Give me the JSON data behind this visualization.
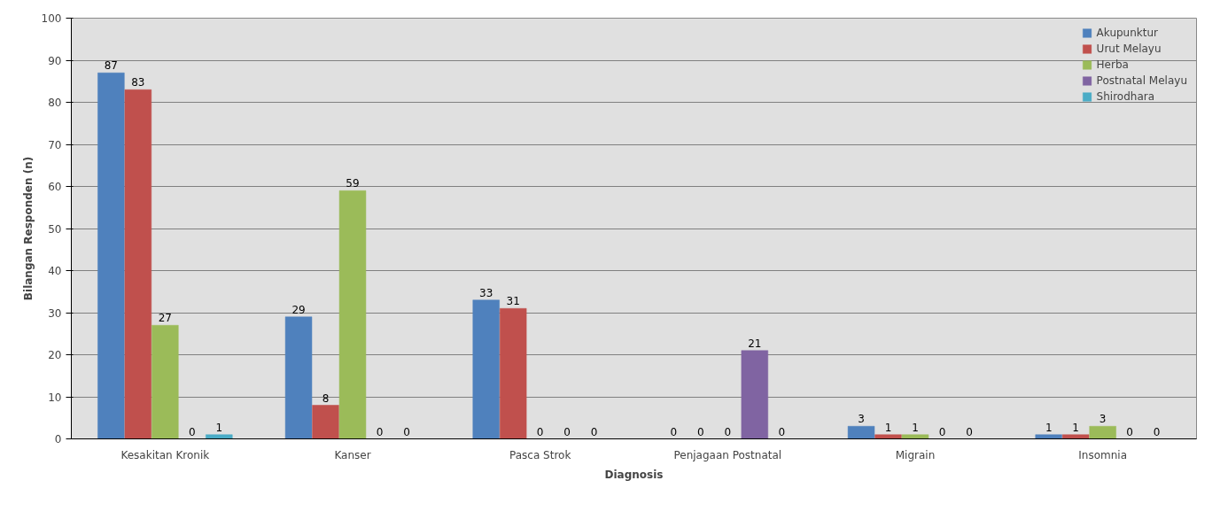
{
  "chart_data": {
    "type": "bar",
    "xlabel": "Diagnosis",
    "ylabel": "Bilangan Responden (n)",
    "categories": [
      "Kesakitan Kronik",
      "Kanser",
      "Pasca Strok",
      "Penjagaan Postnatal",
      "Migrain",
      "Insomnia"
    ],
    "series": [
      {
        "name": "Akupunktur",
        "color": "#4f81bd",
        "values": [
          87,
          29,
          33,
          0,
          3,
          1
        ]
      },
      {
        "name": "Urut Melayu",
        "color": "#c0504d",
        "values": [
          83,
          8,
          31,
          0,
          1,
          1
        ]
      },
      {
        "name": "Herba",
        "color": "#9bbb59",
        "values": [
          27,
          59,
          0,
          0,
          1,
          3
        ]
      },
      {
        "name": "Postnatal Melayu",
        "color": "#8064a2",
        "values": [
          0,
          0,
          0,
          21,
          0,
          0
        ]
      },
      {
        "name": "Shirodhara",
        "color": "#4bacc6",
        "values": [
          1,
          0,
          0,
          0,
          0,
          0
        ]
      }
    ],
    "ylim": [
      0,
      100
    ],
    "yticks": [
      0,
      10,
      20,
      30,
      40,
      50,
      60,
      70,
      80,
      90,
      100
    ],
    "grid": "y",
    "legend": "top right",
    "data_labels": true
  }
}
